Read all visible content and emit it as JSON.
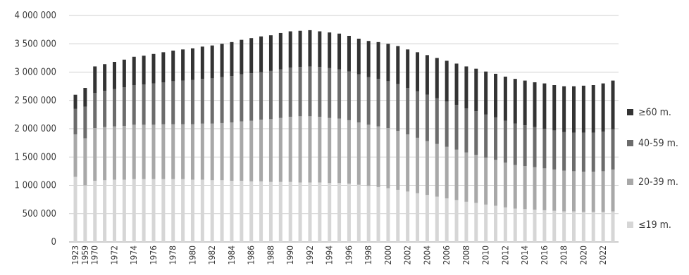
{
  "chart_data": {
    "type": "bar",
    "stacked": true,
    "ylim": [
      0,
      4000000
    ],
    "y_ticks": [
      {
        "value": 0,
        "label": "0"
      },
      {
        "value": 500000,
        "label": "500 000"
      },
      {
        "value": 1000000,
        "label": "1 000 000"
      },
      {
        "value": 1500000,
        "label": "1 500 000"
      },
      {
        "value": 2000000,
        "label": "2 000 000"
      },
      {
        "value": 2500000,
        "label": "2 500 000"
      },
      {
        "value": 3000000,
        "label": "3 000 000"
      },
      {
        "value": 3500000,
        "label": "3 500 000"
      },
      {
        "value": 4000000,
        "label": "4 000 000"
      }
    ],
    "grid": "horizontal",
    "legend_position": "right",
    "categories": [
      "1923",
      "1959",
      "1970",
      "1971",
      "1972",
      "1973",
      "1974",
      "1975",
      "1976",
      "1977",
      "1978",
      "1979",
      "1980",
      "1981",
      "1982",
      "1983",
      "1984",
      "1985",
      "1986",
      "1987",
      "1988",
      "1989",
      "1990",
      "1991",
      "1992",
      "1993",
      "1994",
      "1995",
      "1996",
      "1997",
      "1998",
      "1999",
      "2000",
      "2001",
      "2002",
      "2003",
      "2004",
      "2005",
      "2006",
      "2007",
      "2008",
      "2009",
      "2010",
      "2011",
      "2012",
      "2013",
      "2014",
      "2015",
      "2016",
      "2017",
      "2018",
      "2019",
      "2020",
      "2021",
      "2022",
      "2023"
    ],
    "category_labels": [
      "1923",
      "1959",
      "1970",
      "",
      "1972",
      "",
      "1974",
      "",
      "1976",
      "",
      "1978",
      "",
      "1980",
      "",
      "1982",
      "",
      "1984",
      "",
      "1986",
      "",
      "1988",
      "",
      "1990",
      "",
      "1992",
      "",
      "1994",
      "",
      "1996",
      "",
      "1998",
      "",
      "2000",
      "",
      "2002",
      "",
      "2004",
      "",
      "2006",
      "",
      "2008",
      "",
      "2010",
      "",
      "2012",
      "",
      "2014",
      "",
      "2016",
      "",
      "2018",
      "",
      "2020",
      "",
      "2022",
      ""
    ],
    "series": [
      {
        "name": "≤19 m.",
        "color": "#d6d6d6",
        "values": [
          1150000,
          1000000,
          1080000,
          1090000,
          1100000,
          1100000,
          1110000,
          1110000,
          1110000,
          1110000,
          1110000,
          1110000,
          1100000,
          1100000,
          1090000,
          1090000,
          1080000,
          1080000,
          1070000,
          1070000,
          1060000,
          1060000,
          1060000,
          1050000,
          1050000,
          1050000,
          1040000,
          1040000,
          1030000,
          1010000,
          990000,
          970000,
          950000,
          920000,
          890000,
          860000,
          830000,
          800000,
          770000,
          740000,
          710000,
          690000,
          660000,
          640000,
          610000,
          590000,
          580000,
          570000,
          560000,
          550000,
          540000,
          540000,
          530000,
          530000,
          530000,
          540000
        ]
      },
      {
        "name": "20-39 m.",
        "color": "#a8a8a8",
        "values": [
          750000,
          830000,
          930000,
          940000,
          940000,
          950000,
          960000,
          960000,
          960000,
          970000,
          970000,
          970000,
          980000,
          990000,
          1000000,
          1010000,
          1030000,
          1050000,
          1070000,
          1090000,
          1110000,
          1130000,
          1150000,
          1170000,
          1170000,
          1160000,
          1150000,
          1140000,
          1120000,
          1100000,
          1080000,
          1070000,
          1060000,
          1040000,
          1010000,
          980000,
          950000,
          930000,
          910000,
          890000,
          870000,
          850000,
          830000,
          810000,
          790000,
          770000,
          760000,
          750000,
          740000,
          730000,
          720000,
          710000,
          710000,
          710000,
          720000,
          740000
        ]
      },
      {
        "name": "40-59 m.",
        "color": "#6c6c6c",
        "values": [
          450000,
          560000,
          620000,
          640000,
          660000,
          680000,
          700000,
          710000,
          730000,
          740000,
          760000,
          770000,
          780000,
          790000,
          800000,
          810000,
          820000,
          830000,
          840000,
          840000,
          850000,
          860000,
          870000,
          870000,
          880000,
          880000,
          880000,
          870000,
          860000,
          850000,
          840000,
          840000,
          830000,
          830000,
          820000,
          820000,
          820000,
          810000,
          800000,
          790000,
          780000,
          770000,
          760000,
          750000,
          740000,
          730000,
          720000,
          710000,
          700000,
          690000,
          680000,
          680000,
          690000,
          690000,
          700000,
          710000
        ]
      },
      {
        "name": "≥60 m.",
        "color": "#333333",
        "values": [
          250000,
          330000,
          470000,
          470000,
          480000,
          490000,
          500000,
          510000,
          520000,
          530000,
          540000,
          550000,
          560000,
          570000,
          580000,
          590000,
          600000,
          610000,
          620000,
          630000,
          630000,
          640000,
          640000,
          640000,
          640000,
          630000,
          630000,
          630000,
          630000,
          630000,
          640000,
          650000,
          660000,
          670000,
          680000,
          690000,
          700000,
          710000,
          720000,
          730000,
          740000,
          750000,
          760000,
          770000,
          780000,
          790000,
          790000,
          790000,
          800000,
          800000,
          810000,
          820000,
          830000,
          840000,
          850000,
          860000
        ]
      }
    ]
  }
}
